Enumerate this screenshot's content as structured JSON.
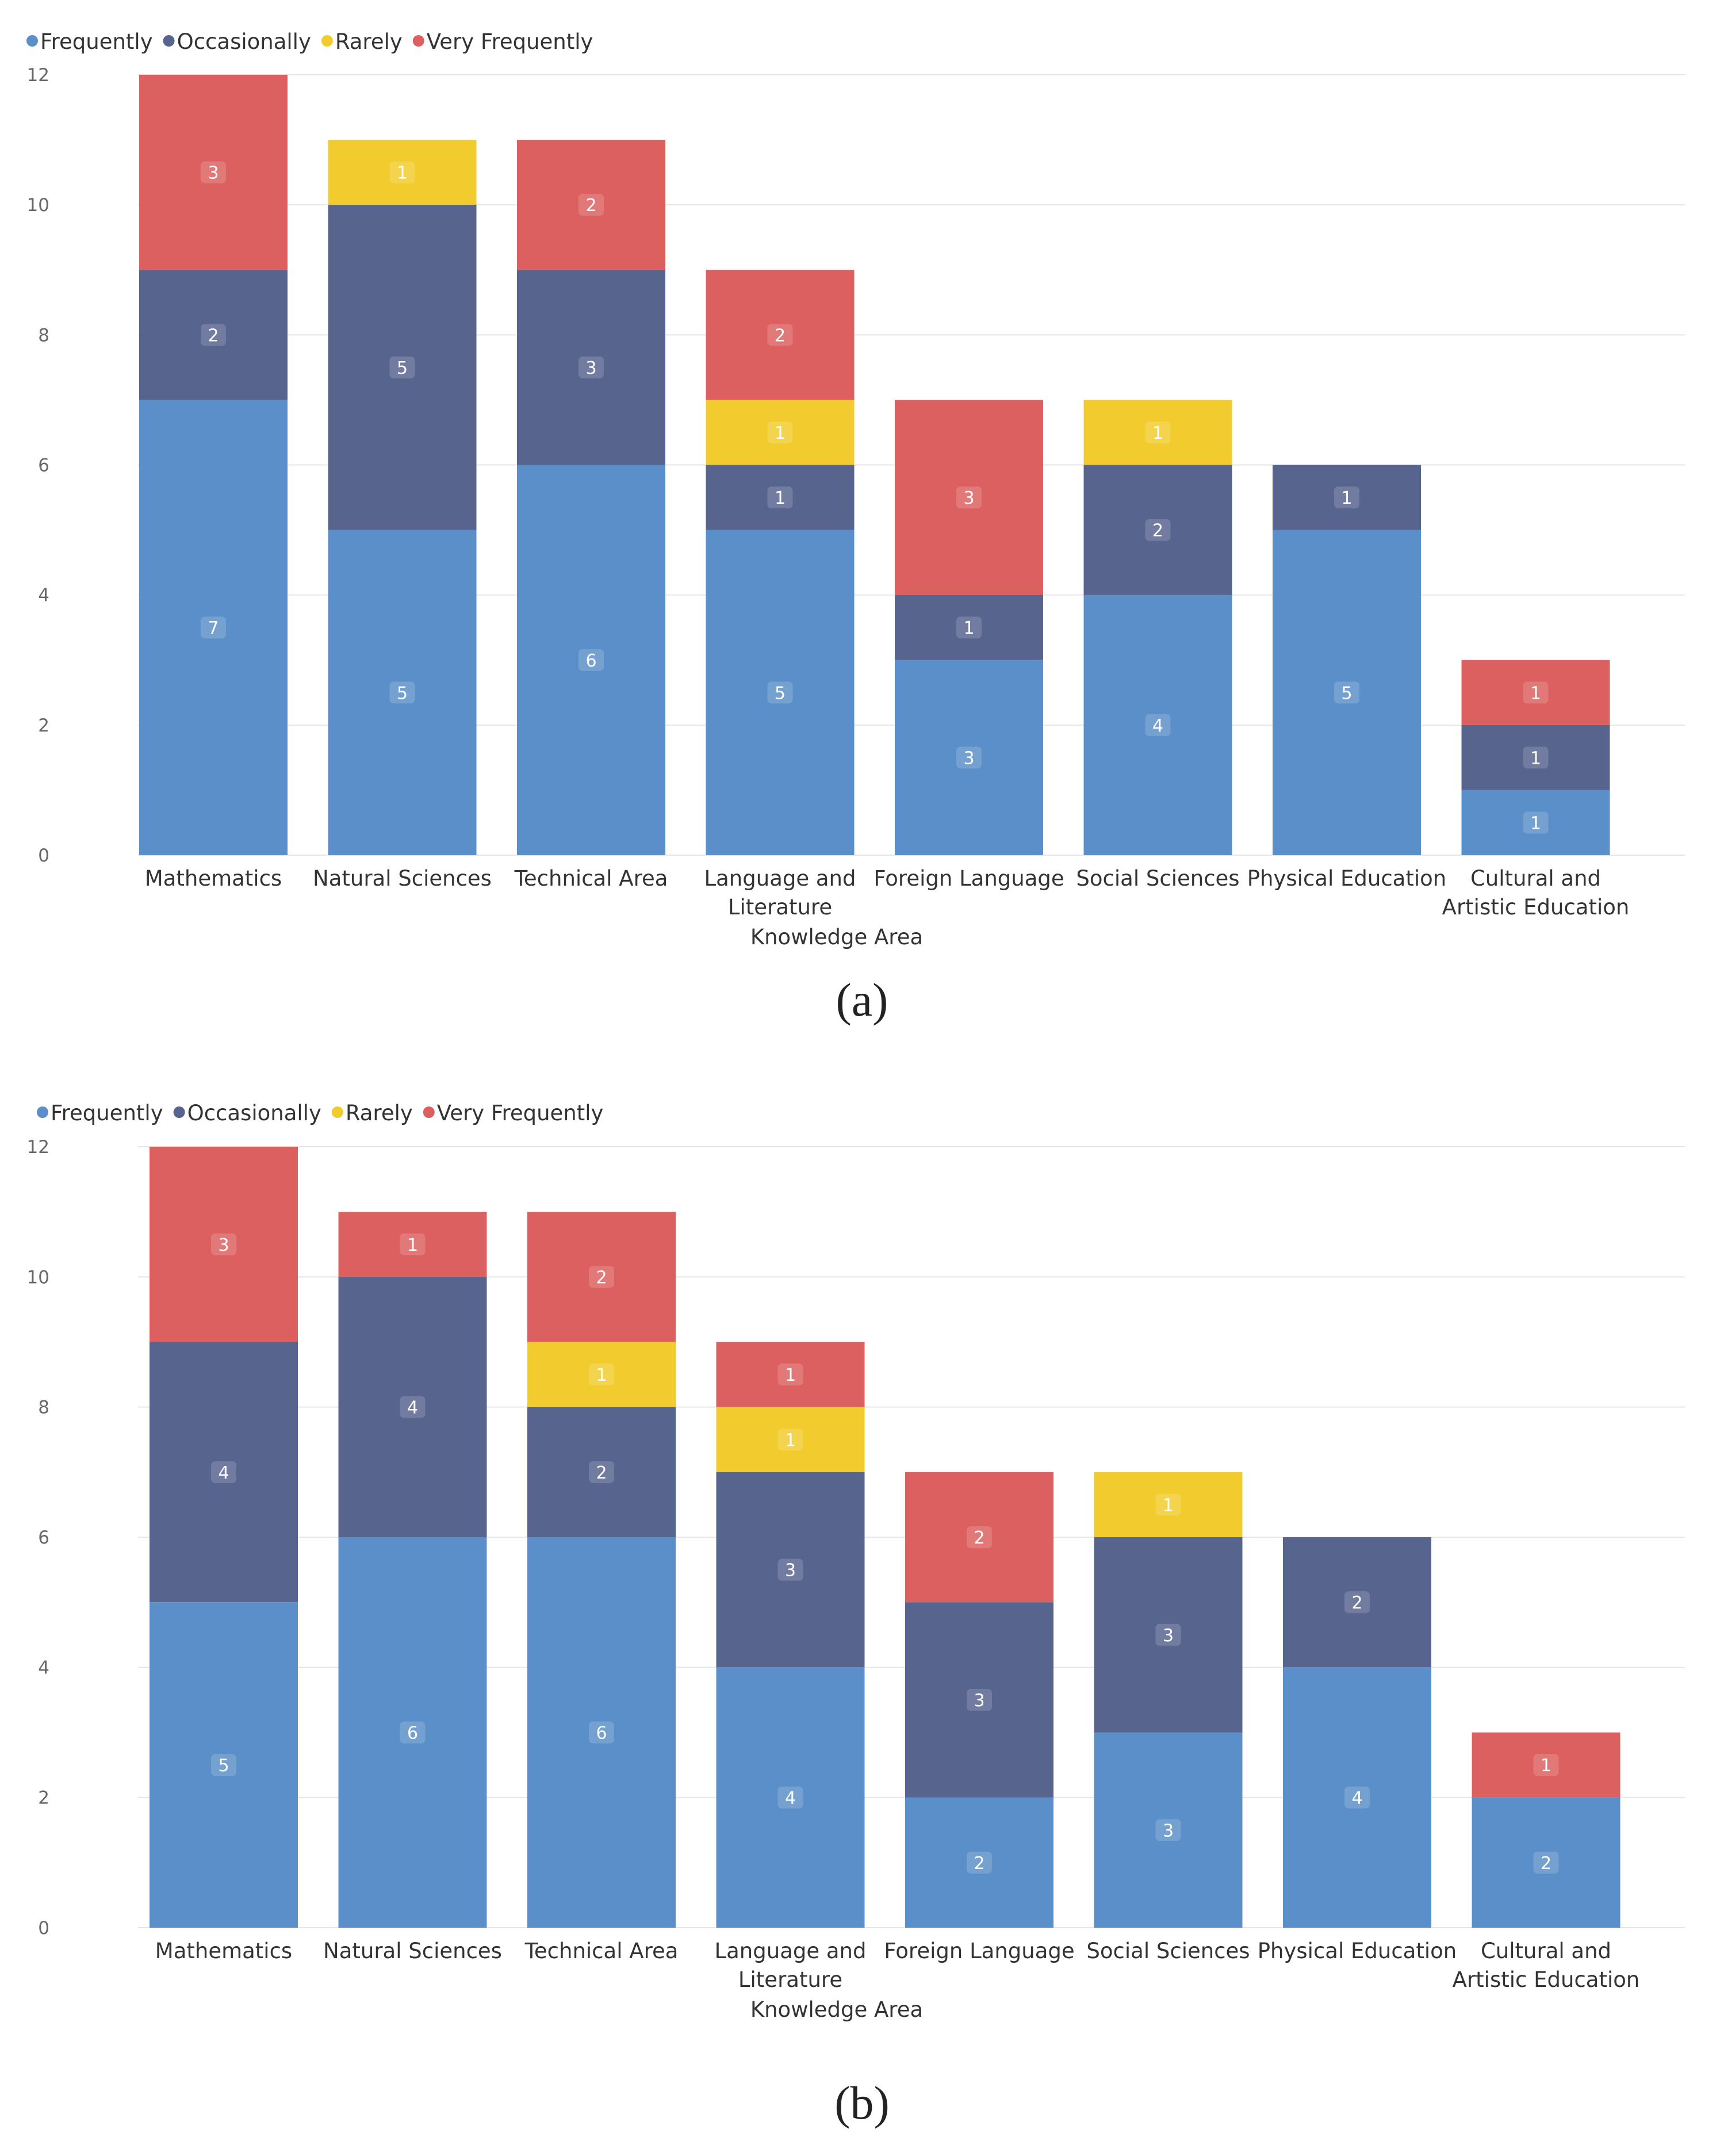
{
  "series_colors": {
    "Frequently": "#5b8fc9",
    "Occasionally": "#56648e",
    "Rarely": "#f2cb2e",
    "Very Frequently": "#dd6060"
  },
  "chart_data": [
    {
      "type": "bar",
      "stacked": true,
      "caption": "(a)",
      "legend": [
        "Frequently",
        "Occasionally",
        "Rarely",
        "Very Frequently"
      ],
      "legend_position": "top-left",
      "categories": [
        [
          "Mathematics"
        ],
        [
          "Natural Sciences"
        ],
        [
          "Technical Area"
        ],
        [
          "Language and",
          "Literature"
        ],
        [
          "Foreign Language"
        ],
        [
          "Social Sciences"
        ],
        [
          "Physical Education"
        ],
        [
          "Cultural and",
          "Artistic Education"
        ]
      ],
      "xlabel": "Knowledge Area",
      "ylabel": "",
      "ylim": [
        0,
        12
      ],
      "yticks": [
        0,
        2,
        4,
        6,
        8,
        10,
        12
      ],
      "grid": true,
      "series": [
        {
          "name": "Frequently",
          "values": [
            7,
            5,
            6,
            5,
            3,
            4,
            5,
            1
          ]
        },
        {
          "name": "Occasionally",
          "values": [
            2,
            5,
            3,
            1,
            1,
            2,
            1,
            1
          ]
        },
        {
          "name": "Rarely",
          "values": [
            0,
            1,
            0,
            1,
            0,
            1,
            0,
            0
          ]
        },
        {
          "name": "Very Frequently",
          "values": [
            3,
            0,
            2,
            2,
            3,
            0,
            0,
            1
          ]
        }
      ]
    },
    {
      "type": "bar",
      "stacked": true,
      "caption": "(b)",
      "legend": [
        "Frequently",
        "Occasionally",
        "Rarely",
        "Very Frequently"
      ],
      "legend_position": "top-left",
      "categories": [
        [
          "Mathematics"
        ],
        [
          "Natural Sciences"
        ],
        [
          "Technical Area"
        ],
        [
          "Language and",
          "Literature"
        ],
        [
          "Foreign Language"
        ],
        [
          "Social Sciences"
        ],
        [
          "Physical Education"
        ],
        [
          "Cultural and",
          "Artistic Education"
        ]
      ],
      "xlabel": "Knowledge Area",
      "ylabel": "",
      "ylim": [
        0,
        12
      ],
      "yticks": [
        0,
        2,
        4,
        6,
        8,
        10,
        12
      ],
      "grid": true,
      "series": [
        {
          "name": "Frequently",
          "values": [
            5,
            6,
            6,
            4,
            2,
            3,
            4,
            2
          ]
        },
        {
          "name": "Occasionally",
          "values": [
            4,
            4,
            2,
            3,
            3,
            3,
            2,
            0
          ]
        },
        {
          "name": "Rarely",
          "values": [
            0,
            0,
            1,
            1,
            0,
            1,
            0,
            0
          ]
        },
        {
          "name": "Very Frequently",
          "values": [
            3,
            1,
            2,
            1,
            2,
            0,
            0,
            1
          ]
        }
      ]
    }
  ]
}
